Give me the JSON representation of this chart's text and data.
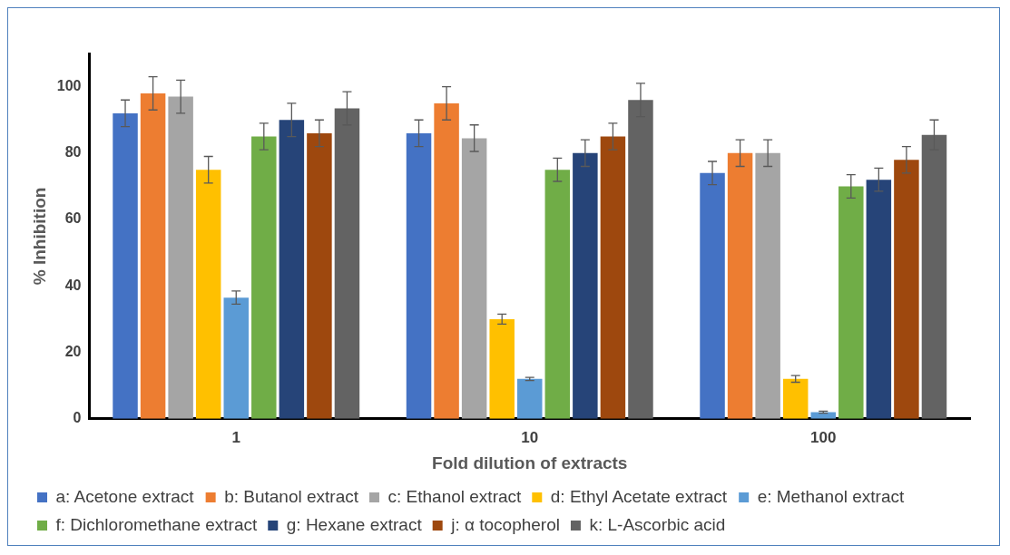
{
  "chart_data": {
    "type": "bar",
    "xlabel": "Fold dilution of extracts",
    "ylabel": "% Inhibition",
    "categories": [
      "1",
      "10",
      "100"
    ],
    "ylim": [
      0,
      110
    ],
    "yticks": [
      0,
      20,
      40,
      60,
      80,
      100
    ],
    "grid": false,
    "legend": "bottom",
    "series": [
      {
        "name": "a: Acetone extract",
        "color": "#4472c4",
        "values": [
          92,
          86,
          74
        ],
        "errors": [
          4,
          4,
          3.5
        ]
      },
      {
        "name": "b: Butanol extract",
        "color": "#ed7d31",
        "values": [
          98,
          95,
          80
        ],
        "errors": [
          5,
          5,
          4
        ]
      },
      {
        "name": "c: Ethanol extract",
        "color": "#a5a5a5",
        "values": [
          97,
          84.5,
          80
        ],
        "errors": [
          5,
          4,
          4
        ]
      },
      {
        "name": "d: Ethyl Acetate extract",
        "color": "#ffc000",
        "values": [
          75,
          30,
          12
        ],
        "errors": [
          4,
          1.5,
          1
        ]
      },
      {
        "name": "e: Methanol extract",
        "color": "#5b9bd5",
        "values": [
          36.5,
          12,
          2
        ],
        "errors": [
          2,
          0.5,
          0.3
        ]
      },
      {
        "name": "f: Dichloromethane extract",
        "color": "#70ad47",
        "values": [
          85,
          75,
          70
        ],
        "errors": [
          4,
          3.5,
          3.5
        ]
      },
      {
        "name": "g: Hexane extract",
        "color": "#264478",
        "values": [
          90,
          80,
          72
        ],
        "errors": [
          5,
          4,
          3.5
        ]
      },
      {
        "name": "j: α tocopherol",
        "color": "#9e480e",
        "values": [
          86,
          85,
          78
        ],
        "errors": [
          4,
          4,
          4
        ]
      },
      {
        "name": "k: L-Ascorbic acid",
        "color": "#636363",
        "values": [
          93.5,
          96,
          85.5
        ],
        "errors": [
          5,
          5,
          4.5
        ]
      }
    ]
  }
}
